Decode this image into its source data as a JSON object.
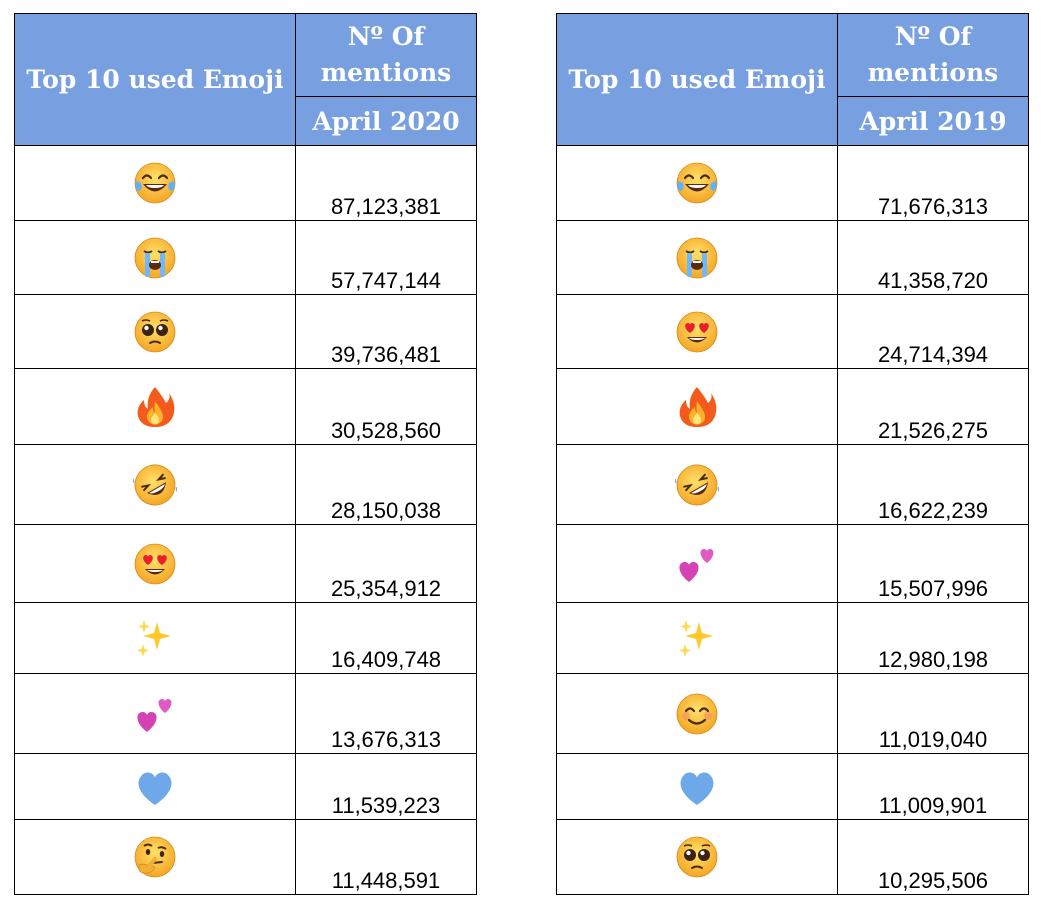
{
  "tables": [
    {
      "header": {
        "title": "Top 10 used Emoji",
        "mentions_line1": "Nº Of",
        "mentions_line2": "mentions",
        "period": "April 2020"
      },
      "rows": [
        {
          "emoji": "face-with-tears-of-joy",
          "count": "87,123,381"
        },
        {
          "emoji": "loudly-crying-face",
          "count": "57,747,144"
        },
        {
          "emoji": "pleading-face",
          "count": "39,736,481"
        },
        {
          "emoji": "fire",
          "count": "30,528,560"
        },
        {
          "emoji": "rolling-on-the-floor-laughing",
          "count": "28,150,038"
        },
        {
          "emoji": "smiling-face-with-heart-eyes",
          "count": "25,354,912"
        },
        {
          "emoji": "sparkles",
          "count": "16,409,748"
        },
        {
          "emoji": "two-hearts",
          "count": "13,676,313"
        },
        {
          "emoji": "blue-heart",
          "count": "11,539,223"
        },
        {
          "emoji": "thinking-face",
          "count": "11,448,591"
        }
      ]
    },
    {
      "header": {
        "title": "Top 10 used Emoji",
        "mentions_line1": "Nº Of",
        "mentions_line2": "mentions",
        "period": "April 2019"
      },
      "rows": [
        {
          "emoji": "face-with-tears-of-joy",
          "count": "71,676,313"
        },
        {
          "emoji": "loudly-crying-face",
          "count": "41,358,720"
        },
        {
          "emoji": "smiling-face-with-heart-eyes",
          "count": "24,714,394"
        },
        {
          "emoji": "fire",
          "count": "21,526,275"
        },
        {
          "emoji": "rolling-on-the-floor-laughing",
          "count": "16,622,239"
        },
        {
          "emoji": "two-hearts",
          "count": "15,507,996"
        },
        {
          "emoji": "sparkles",
          "count": "12,980,198"
        },
        {
          "emoji": "smiling-face-with-smiling-eyes",
          "count": "11,019,040"
        },
        {
          "emoji": "blue-heart",
          "count": "11,009,901"
        },
        {
          "emoji": "pleading-face",
          "count": "10,295,506"
        }
      ]
    }
  ],
  "colors": {
    "header_bg": "#789fe0",
    "header_text": "#ffffff",
    "border": "#000000"
  }
}
